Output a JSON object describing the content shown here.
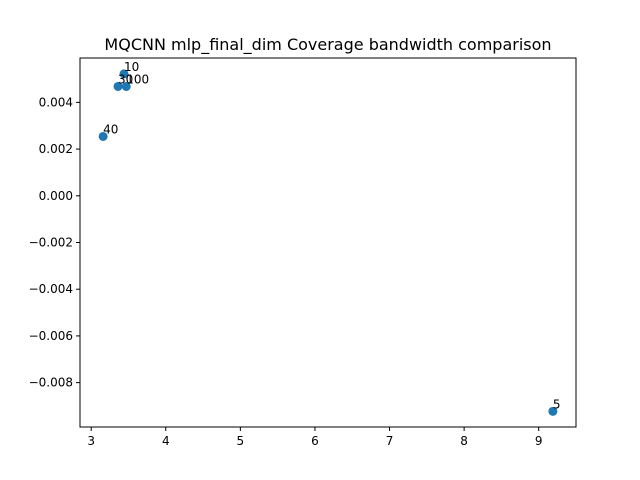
{
  "chart_data": {
    "type": "scatter",
    "title": "MQCNN mlp_final_dim Coverage bandwidth comparison",
    "xlabel": "",
    "ylabel": "",
    "xlim": [
      2.85,
      9.5
    ],
    "ylim": [
      -0.0099,
      0.0059
    ],
    "grid": false,
    "x_ticks": [
      3,
      4,
      5,
      6,
      7,
      8,
      9
    ],
    "x_tick_labels": [
      "3",
      "4",
      "5",
      "6",
      "7",
      "8",
      "9"
    ],
    "y_ticks": [
      0.004,
      0.002,
      0.0,
      -0.002,
      -0.004,
      -0.006,
      -0.008
    ],
    "y_tick_labels": [
      "0.004",
      "0.002",
      "0.000",
      "−0.002",
      "−0.004",
      "−0.006",
      "−0.008"
    ],
    "marker_color": "#1f77b4",
    "points": [
      {
        "x": 3.44,
        "y": 0.00522,
        "label": "10"
      },
      {
        "x": 3.36,
        "y": 0.00468,
        "label": "30"
      },
      {
        "x": 3.47,
        "y": 0.00468,
        "label": "100"
      },
      {
        "x": 3.16,
        "y": 0.00254,
        "label": "40"
      },
      {
        "x": 9.19,
        "y": -0.00923,
        "label": "5"
      }
    ]
  }
}
